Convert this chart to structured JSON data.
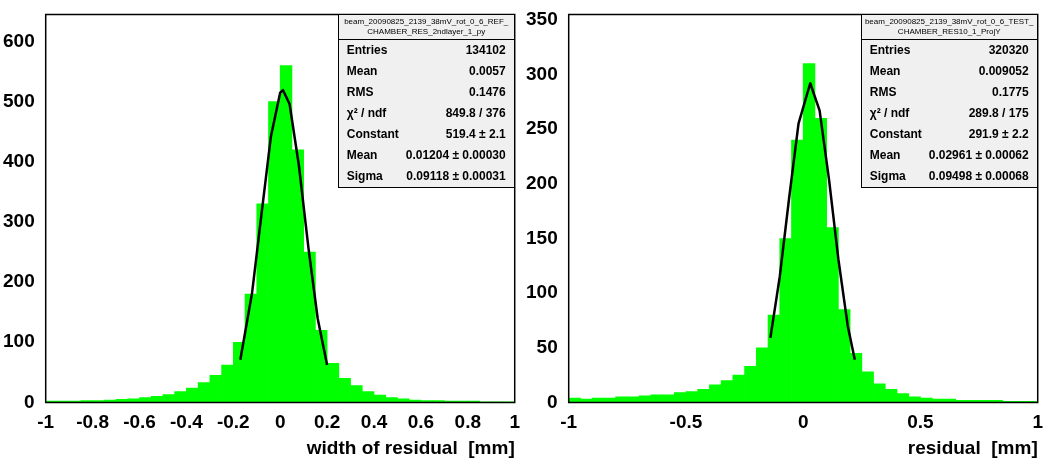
{
  "chart_data": [
    {
      "type": "histogram",
      "xlabel": "width of residual  [mm]",
      "xlim": [
        -1,
        1
      ],
      "xticks": [
        -1,
        -0.8,
        -0.6,
        -0.4,
        -0.2,
        0,
        0.2,
        0.4,
        0.6,
        0.8,
        1
      ],
      "ylim": [
        0,
        645
      ],
      "yticks": [
        0,
        100,
        200,
        300,
        400,
        500,
        600
      ],
      "grid": false,
      "legend": false,
      "bins": [
        -1,
        -0.95,
        -0.9,
        -0.85,
        -0.8,
        -0.75,
        -0.7,
        -0.65,
        -0.6,
        -0.55,
        -0.5,
        -0.45,
        -0.4,
        -0.35,
        -0.3,
        -0.25,
        -0.2,
        -0.15,
        -0.1,
        -0.05,
        0,
        0.05,
        0.1,
        0.15,
        0.2,
        0.25,
        0.3,
        0.35,
        0.4,
        0.45,
        0.5,
        0.55,
        0.6,
        0.65,
        0.7,
        0.75,
        0.8,
        0.85,
        0.9,
        0.95,
        1
      ],
      "series": [
        {
          "color": "#00ff00",
          "values": [
            2,
            2,
            2,
            3,
            3,
            4,
            5,
            6,
            8,
            10,
            13,
            18,
            24,
            33,
            45,
            62,
            100,
            180,
            330,
            500,
            560,
            420,
            250,
            120,
            65,
            40,
            28,
            18,
            12,
            8,
            6,
            4,
            3,
            3,
            2,
            2,
            2,
            1,
            1,
            1
          ]
        },
        {
          "type": "line",
          "color": "#000000",
          "x": [
            -0.17,
            -0.12,
            -0.08,
            -0.04,
            0,
            0.012,
            0.04,
            0.08,
            0.12,
            0.16,
            0.2
          ],
          "values": [
            71,
            182,
            312,
            441,
            515,
            519,
            496,
            393,
            258,
            139,
            62
          ]
        }
      ],
      "annotations": [
        "beam_20090825_2139_38mV_rot_0_6_REF_CHAMBER_RES_2ndlayer_1_py",
        "Entries",
        "134102",
        "Mean",
        "0.0057",
        "RMS",
        "0.1476",
        "χ² / ndf",
        "849.8 / 376",
        "Constant",
        "519.4 ± 2.1",
        "Mean",
        "0.01204 ± 0.00030",
        "Sigma",
        "0.09118 ± 0.00031"
      ]
    },
    {
      "type": "histogram",
      "xlabel": "residual  [mm]",
      "xlim": [
        -1,
        1
      ],
      "xticks": [
        -1,
        -0.5,
        0,
        0.5,
        1
      ],
      "ylim": [
        0,
        355
      ],
      "yticks": [
        0,
        50,
        100,
        150,
        200,
        250,
        300,
        350
      ],
      "grid": false,
      "legend": false,
      "bins": [
        -1,
        -0.95,
        -0.9,
        -0.85,
        -0.8,
        -0.75,
        -0.7,
        -0.65,
        -0.6,
        -0.55,
        -0.5,
        -0.45,
        -0.4,
        -0.35,
        -0.3,
        -0.25,
        -0.2,
        -0.15,
        -0.1,
        -0.05,
        0,
        0.05,
        0.1,
        0.15,
        0.2,
        0.25,
        0.3,
        0.35,
        0.4,
        0.45,
        0.5,
        0.55,
        0.6,
        0.65,
        0.7,
        0.75,
        0.8,
        0.85,
        0.9,
        0.95,
        1
      ],
      "series": [
        {
          "color": "#00ff00",
          "values": [
            4,
            3,
            4,
            4,
            5,
            5,
            6,
            7,
            7,
            9,
            10,
            12,
            16,
            20,
            25,
            33,
            50,
            80,
            150,
            240,
            310,
            260,
            160,
            85,
            45,
            28,
            17,
            12,
            8,
            5,
            4,
            3,
            3,
            2,
            2,
            2,
            2,
            1,
            1,
            1
          ]
        },
        {
          "type": "line",
          "color": "#000000",
          "x": [
            -0.14,
            -0.1,
            -0.06,
            -0.02,
            0.03,
            0.07,
            0.11,
            0.15,
            0.19,
            0.22
          ],
          "values": [
            59,
            115,
            187,
            255,
            292,
            267,
            204,
            131,
            70,
            39
          ]
        }
      ],
      "annotations": [
        "beam_20090825_2139_38mV_rot_0_6_TEST_CHAMBER_RES10_1_ProjY",
        "Entries",
        "320320",
        "Mean",
        "0.009052",
        "RMS",
        "0.1775",
        "χ² / ndf",
        "289.8 / 175",
        "Constant",
        "291.9 ± 2.2",
        "Mean",
        "0.02961 ± 0.00062",
        "Sigma",
        "0.09498 ± 0.00068"
      ]
    }
  ]
}
